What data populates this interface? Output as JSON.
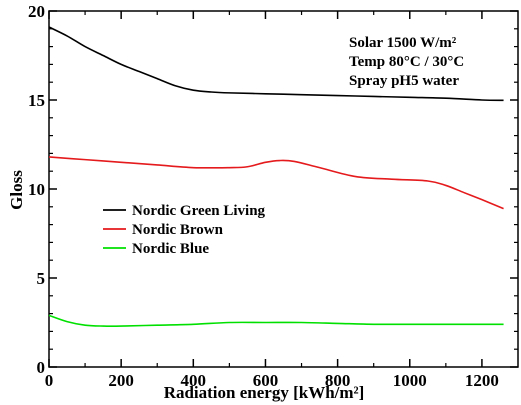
{
  "chart_data": {
    "type": "line",
    "xlabel": "Radiation energy [kWh/m²]",
    "ylabel": "Gloss",
    "xlim": [
      0,
      1300
    ],
    "ylim": [
      0,
      20
    ],
    "xticks": [
      0,
      200,
      400,
      600,
      800,
      1000,
      1200
    ],
    "yticks": [
      0,
      5,
      10,
      15,
      20
    ],
    "grid": false,
    "legend_position": "center-left",
    "annotations": [
      "Solar 1500 W/m²",
      "Temp 80°C / 30°C",
      "Spray pH5 water"
    ],
    "series": [
      {
        "name": "Nordic Green Living",
        "color": "#000000",
        "x": [
          0,
          50,
          100,
          150,
          200,
          250,
          300,
          350,
          400,
          450,
          500,
          600,
          700,
          800,
          900,
          1000,
          1100,
          1200,
          1260
        ],
        "y": [
          19.1,
          18.6,
          18.0,
          17.5,
          17.0,
          16.6,
          16.2,
          15.8,
          15.55,
          15.45,
          15.4,
          15.35,
          15.3,
          15.25,
          15.2,
          15.15,
          15.1,
          15.0,
          14.98
        ]
      },
      {
        "name": "Nordic Brown",
        "color": "#e41a1c",
        "x": [
          0,
          100,
          200,
          300,
          400,
          500,
          550,
          600,
          640,
          680,
          750,
          850,
          950,
          1050,
          1100,
          1150,
          1200,
          1260
        ],
        "y": [
          11.8,
          11.65,
          11.5,
          11.35,
          11.2,
          11.2,
          11.25,
          11.5,
          11.6,
          11.55,
          11.2,
          10.7,
          10.55,
          10.45,
          10.2,
          9.8,
          9.4,
          8.9
        ]
      },
      {
        "name": "Nordic Blue",
        "color": "#00e000",
        "x": [
          0,
          50,
          100,
          150,
          200,
          300,
          400,
          500,
          600,
          700,
          800,
          900,
          1000,
          1100,
          1200,
          1260
        ],
        "y": [
          2.9,
          2.55,
          2.35,
          2.3,
          2.3,
          2.35,
          2.4,
          2.5,
          2.5,
          2.5,
          2.45,
          2.4,
          2.4,
          2.4,
          2.4,
          2.4
        ]
      }
    ]
  }
}
